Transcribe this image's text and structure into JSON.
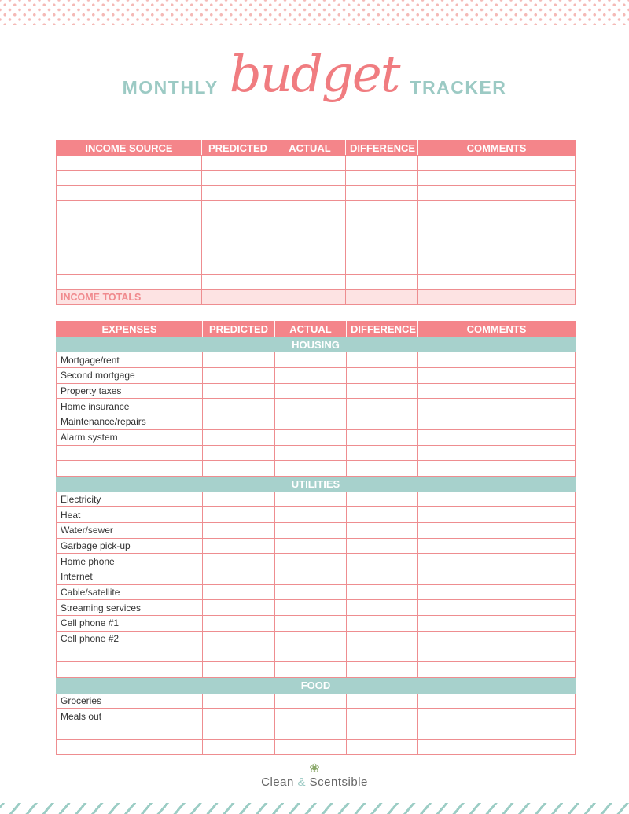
{
  "title": {
    "left": "MONTHLY",
    "script": "budget",
    "right": "TRACKER"
  },
  "colors": {
    "pink": "#f4858a",
    "teal": "#a7d1cc",
    "title_teal": "#9ccac4",
    "script_pink": "#f07c80",
    "totals_bg": "#fde3e3"
  },
  "income": {
    "headers": [
      "INCOME SOURCE",
      "PREDICTED",
      "ACTUAL",
      "DIFFERENCE",
      "COMMENTS"
    ],
    "blank_rows": 9,
    "totals_label": "INCOME TOTALS"
  },
  "expenses": {
    "headers": [
      "EXPENSES",
      "PREDICTED",
      "ACTUAL",
      "DIFFERENCE",
      "COMMENTS"
    ],
    "sections": [
      {
        "name": "HOUSING",
        "items": [
          "Mortgage/rent",
          "Second mortgage",
          "Property taxes",
          "Home insurance",
          "Maintenance/repairs",
          "Alarm system",
          "",
          ""
        ]
      },
      {
        "name": "UTILITIES",
        "items": [
          "Electricity",
          "Heat",
          "Water/sewer",
          "Garbage pick-up",
          "Home phone",
          "Internet",
          "Cable/satellite",
          "Streaming services",
          "Cell phone #1",
          "Cell phone #2",
          "",
          ""
        ]
      },
      {
        "name": "FOOD",
        "items": [
          "Groceries",
          "Meals out",
          "",
          ""
        ]
      }
    ]
  },
  "footer": {
    "logo_left": "Clean",
    "logo_amp": "&",
    "logo_right": "Scentsible",
    "logo_icon": "floral-sprig-icon"
  }
}
